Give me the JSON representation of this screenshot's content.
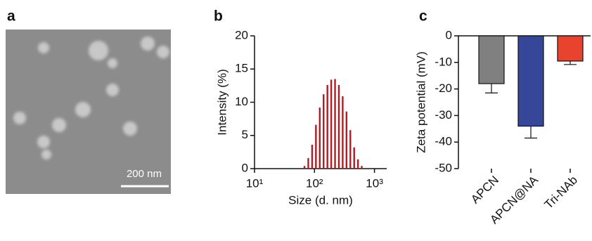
{
  "panel_labels": [
    "a",
    "b",
    "c"
  ],
  "image": {
    "scale_bar": "200 nm"
  },
  "chart_data": [
    {
      "type": "bar",
      "x_scale": "log",
      "xlabel": "Size (d. nm)",
      "ylabel": "Intensity (%)",
      "color": "#b01c22",
      "x": [
        68.06,
        78.82,
        91.28,
        105.7,
        122.4,
        141.8,
        164.2,
        190.1,
        220.2,
        255.0,
        295.3,
        342.0,
        396.1,
        458.7,
        531.2,
        615.1
      ],
      "values": [
        0.4,
        1.6,
        3.6,
        6.6,
        9.2,
        11.2,
        12.6,
        13.4,
        13.5,
        12.6,
        10.9,
        8.6,
        5.8,
        3.2,
        1.4,
        0.4
      ],
      "xlim": [
        10,
        1600
      ],
      "xticks": [
        {
          "value": 10,
          "label": "10¹"
        },
        {
          "value": 100,
          "label": "10²"
        },
        {
          "value": 1000,
          "label": "10³"
        }
      ],
      "ylim": [
        0,
        20
      ],
      "yticks": [
        0,
        5,
        10,
        15,
        20
      ]
    },
    {
      "type": "errorbar",
      "ylabel": "Zeta potential (mV)",
      "categories": [
        "APCN",
        "APCN@NA",
        "Tri-NAb"
      ],
      "values": [
        -18,
        -34,
        -9.5
      ],
      "errors": [
        3.5,
        4.5,
        1.3
      ],
      "colors": [
        "#808080",
        "#36479a",
        "#e8432e"
      ],
      "ylim": [
        -50,
        0
      ],
      "yticks": [
        0,
        -10,
        -20,
        -30,
        -40,
        -50
      ]
    }
  ]
}
